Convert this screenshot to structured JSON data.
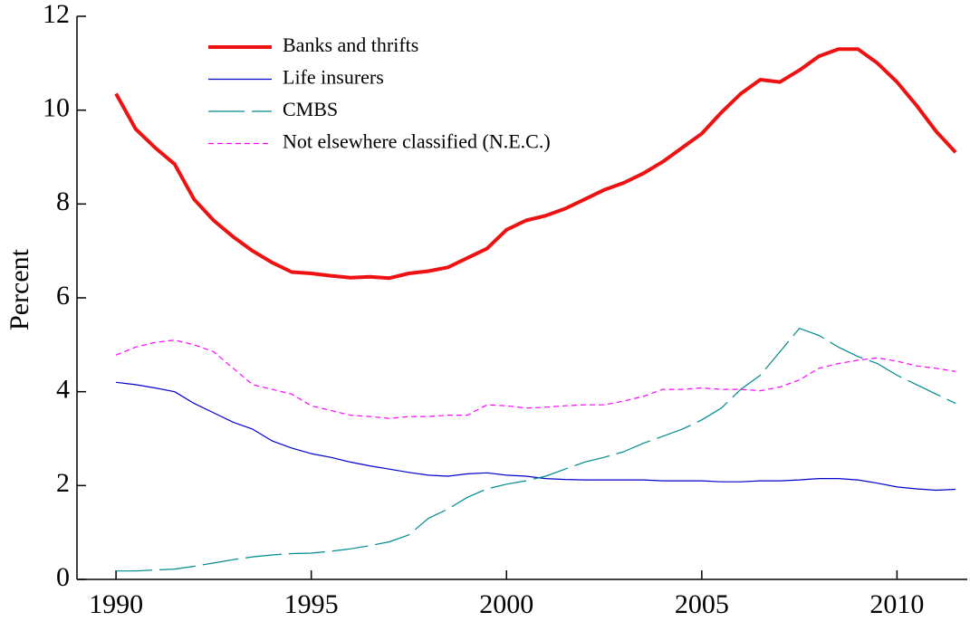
{
  "chart_data": {
    "type": "line",
    "y_label": "Percent",
    "x": [
      1990,
      1990.5,
      1991,
      1991.5,
      1992,
      1992.5,
      1993,
      1993.5,
      1994,
      1994.5,
      1995,
      1995.5,
      1996,
      1996.5,
      1997,
      1997.5,
      1998,
      1998.5,
      1999,
      1999.5,
      2000,
      2000.5,
      2001,
      2001.5,
      2002,
      2002.5,
      2003,
      2003.5,
      2004,
      2004.5,
      2005,
      2005.5,
      2006,
      2006.5,
      2007,
      2007.5,
      2008,
      2008.5,
      2009,
      2009.5,
      2010,
      2010.5,
      2011,
      2011.5
    ],
    "series": [
      {
        "name": "Banks and thrifts",
        "color": "#ee1111",
        "width": 4,
        "dash": "none",
        "values": [
          10.35,
          9.6,
          9.2,
          8.85,
          8.1,
          7.65,
          7.3,
          7.0,
          6.75,
          6.55,
          6.52,
          6.47,
          6.43,
          6.45,
          6.42,
          6.52,
          6.57,
          6.65,
          6.85,
          7.05,
          7.45,
          7.65,
          7.75,
          7.9,
          8.1,
          8.3,
          8.45,
          8.65,
          8.9,
          9.2,
          9.5,
          9.95,
          10.35,
          10.65,
          10.6,
          10.85,
          11.15,
          11.3,
          11.3,
          11.0,
          10.6,
          10.1,
          9.55,
          9.1
        ]
      },
      {
        "name": "Life insurers",
        "color": "#0000cc",
        "width": 1.2,
        "dash": "none",
        "values": [
          4.2,
          4.15,
          4.08,
          4.0,
          3.75,
          3.55,
          3.35,
          3.2,
          2.95,
          2.8,
          2.68,
          2.6,
          2.5,
          2.42,
          2.35,
          2.28,
          2.22,
          2.2,
          2.25,
          2.27,
          2.22,
          2.2,
          2.15,
          2.13,
          2.12,
          2.12,
          2.12,
          2.12,
          2.1,
          2.1,
          2.1,
          2.08,
          2.08,
          2.1,
          2.1,
          2.12,
          2.15,
          2.15,
          2.12,
          2.05,
          1.97,
          1.93,
          1.9,
          1.92
        ]
      },
      {
        "name": "CMBS",
        "color": "#008b8b",
        "width": 1.2,
        "dash": "40,8",
        "values": [
          0.18,
          0.18,
          0.2,
          0.22,
          0.28,
          0.35,
          0.42,
          0.48,
          0.52,
          0.55,
          0.56,
          0.6,
          0.65,
          0.72,
          0.8,
          0.95,
          1.3,
          1.5,
          1.75,
          1.93,
          2.03,
          2.1,
          2.2,
          2.35,
          2.5,
          2.6,
          2.72,
          2.9,
          3.05,
          3.2,
          3.4,
          3.65,
          4.05,
          4.35,
          4.85,
          5.35,
          5.2,
          4.95,
          4.75,
          4.6,
          4.35,
          4.15,
          3.95,
          3.75
        ]
      },
      {
        "name": "Not elsewhere classified (N.E.C.)",
        "color": "#ff00ff",
        "width": 1.2,
        "dash": "6,4",
        "values": [
          4.78,
          4.95,
          5.05,
          5.1,
          5.0,
          4.85,
          4.5,
          4.15,
          4.05,
          3.95,
          3.7,
          3.6,
          3.5,
          3.47,
          3.43,
          3.47,
          3.47,
          3.5,
          3.5,
          3.72,
          3.7,
          3.65,
          3.67,
          3.7,
          3.72,
          3.72,
          3.8,
          3.9,
          4.05,
          4.05,
          4.08,
          4.05,
          4.05,
          4.02,
          4.1,
          4.25,
          4.5,
          4.6,
          4.67,
          4.72,
          4.65,
          4.55,
          4.5,
          4.43
        ]
      }
    ],
    "xlim": [
      1989,
      2011.8
    ],
    "xticks": [
      1990,
      1995,
      2000,
      2005,
      2010
    ],
    "ylim": [
      0,
      12
    ],
    "yticks": [
      0,
      2,
      4,
      6,
      8,
      10,
      12
    ],
    "grid": false,
    "legend": "top-left"
  }
}
